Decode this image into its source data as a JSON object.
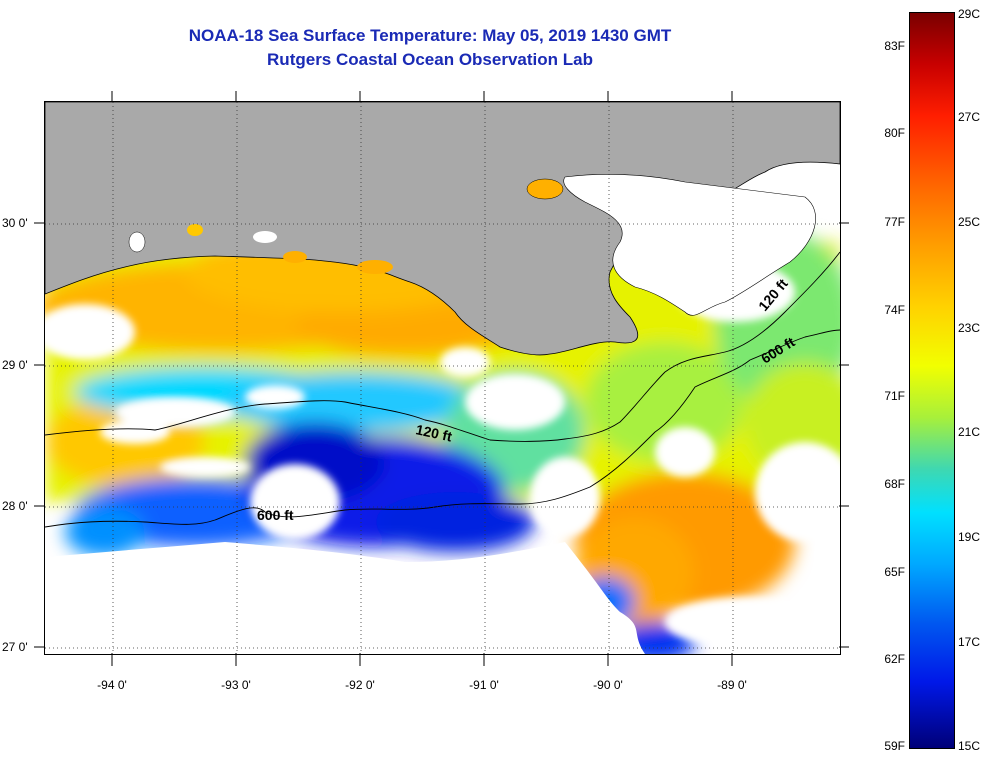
{
  "header": {
    "title": "NOAA-18 Sea Surface Temperature:  May 05, 2019 1430 GMT",
    "subtitle": "Rutgers Coastal Ocean Observation Lab"
  },
  "map": {
    "lon_labels": [
      "-94 0'",
      "-93 0'",
      "-92 0'",
      "-91 0'",
      "-90 0'",
      "-89 0'"
    ],
    "lat_labels": [
      "30 0'",
      "29 0'",
      "28 0'",
      "27 0'"
    ],
    "contours": [
      {
        "label": "120 ft"
      },
      {
        "label": "600 ft"
      },
      {
        "label": "120 ft"
      },
      {
        "label": "600 ft"
      }
    ],
    "colors": {
      "land": "#a9a9a9",
      "no_data": "#ffffff",
      "title": "#1a2ab5"
    }
  },
  "colorbar": {
    "fahrenheit_labels": [
      "83F",
      "80F",
      "77F",
      "74F",
      "71F",
      "68F",
      "65F",
      "62F",
      "59F"
    ],
    "celsius_labels": [
      "29C",
      "27C",
      "25C",
      "23C",
      "21C",
      "19C",
      "17C",
      "15C"
    ]
  }
}
